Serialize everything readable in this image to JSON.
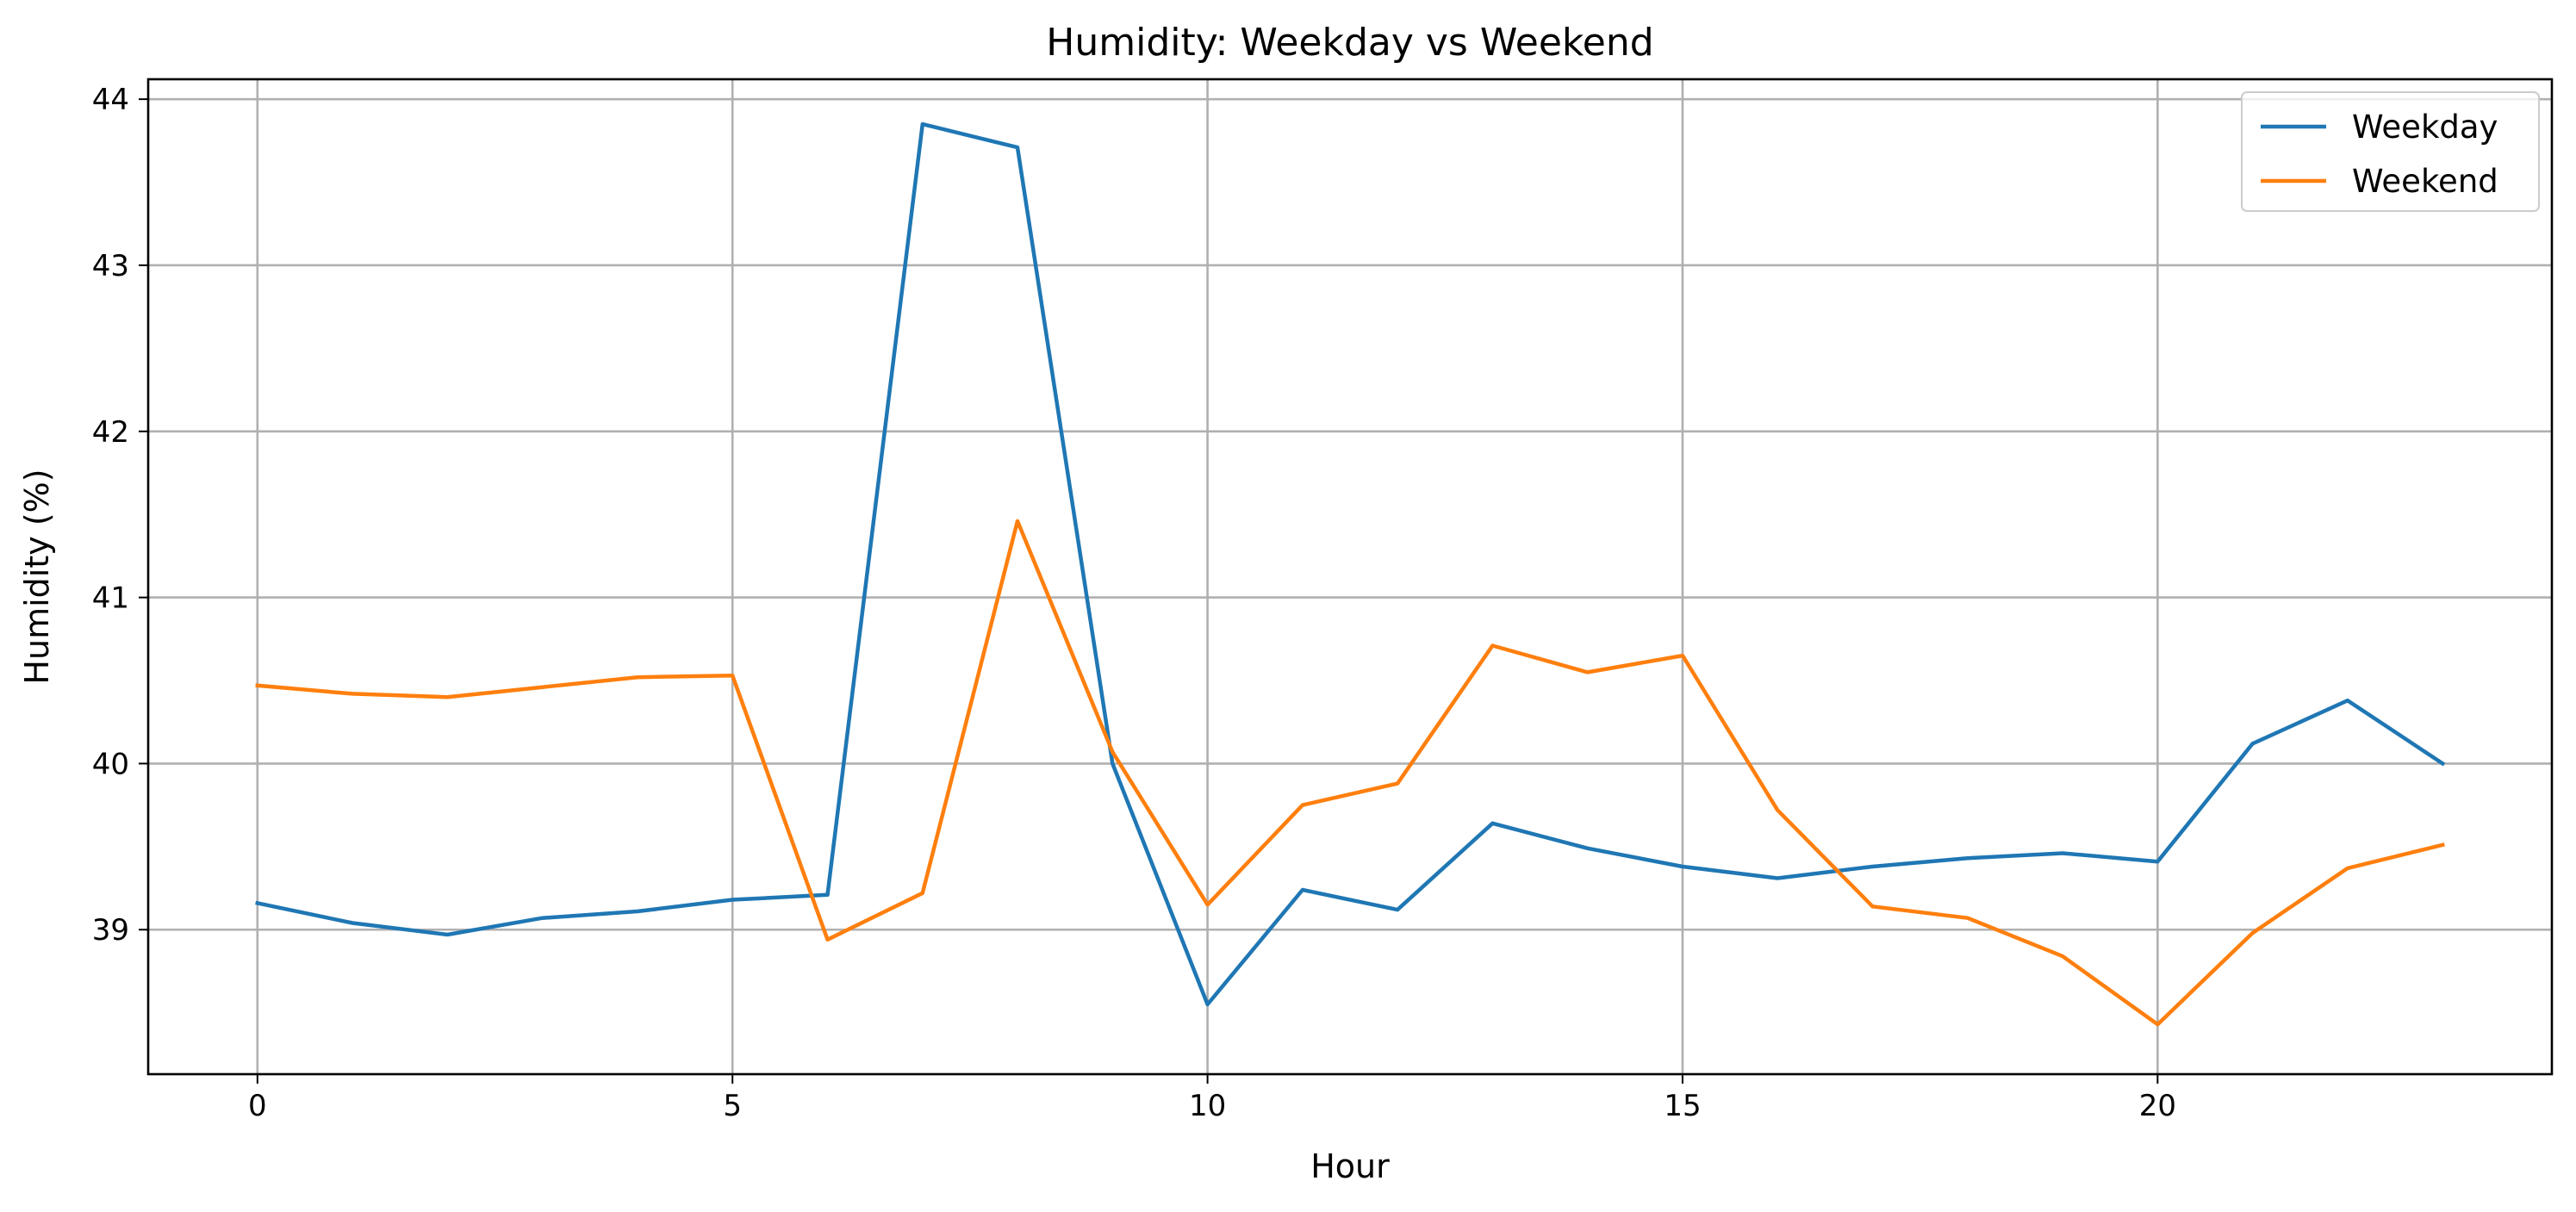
{
  "chart_data": {
    "type": "line",
    "title": "Humidity: Weekday vs Weekend",
    "xlabel": "Hour",
    "ylabel": "Humidity (%)",
    "xlim": [
      -1.15,
      24.15
    ],
    "ylim": [
      38.13,
      44.12
    ],
    "xticks": [
      0,
      5,
      10,
      15,
      20
    ],
    "yticks": [
      39,
      40,
      41,
      42,
      43,
      44
    ],
    "grid": true,
    "legend_position": "top-right",
    "x": [
      0,
      1,
      2,
      3,
      4,
      5,
      6,
      7,
      8,
      9,
      10,
      11,
      12,
      13,
      14,
      15,
      16,
      17,
      18,
      19,
      20,
      21,
      22,
      23
    ],
    "series": [
      {
        "name": "Weekday",
        "color": "#1f77b4",
        "values": [
          39.16,
          39.04,
          38.97,
          39.07,
          39.11,
          39.18,
          39.21,
          43.85,
          43.71,
          40.0,
          38.55,
          39.24,
          39.12,
          39.64,
          39.49,
          39.38,
          39.31,
          39.38,
          39.43,
          39.46,
          39.41,
          40.12,
          40.38,
          40.0
        ]
      },
      {
        "name": "Weekend",
        "color": "#ff7f0e",
        "values": [
          40.47,
          40.42,
          40.4,
          40.46,
          40.52,
          40.53,
          38.94,
          39.22,
          41.46,
          40.07,
          39.15,
          39.75,
          39.88,
          40.71,
          40.55,
          40.65,
          39.72,
          39.14,
          39.07,
          38.84,
          38.43,
          38.98,
          39.37,
          39.51
        ]
      }
    ]
  }
}
